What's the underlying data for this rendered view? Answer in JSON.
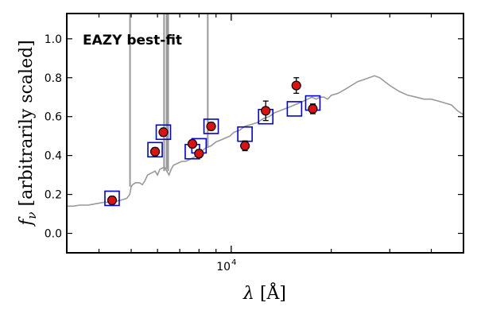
{
  "chart_data": {
    "type": "scatter",
    "title": "",
    "annotation": "EAZY best-fit",
    "annotation_color": "#ff0000",
    "xlabel_symbol": "λ",
    "xlabel_unit": "[Å]",
    "ylabel_symbol": "f",
    "ylabel_subscript": "ν",
    "ylabel_text": "[arbitrarily scaled]",
    "xscale": "log",
    "xlim": [
      3200,
      50000
    ],
    "ylim": [
      -0.1,
      1.13
    ],
    "y_ticks": [
      0.0,
      0.2,
      0.4,
      0.6,
      0.8,
      1.0
    ],
    "y_tick_labels": [
      "0.0",
      "0.2",
      "0.4",
      "0.6",
      "0.8",
      "1.0"
    ],
    "x_major_tick": 10000,
    "x_major_tick_label_base": "10",
    "x_major_tick_label_exp": "4",
    "x_minor_ticks": [
      4000,
      5000,
      6000,
      7000,
      8000,
      9000,
      20000,
      30000,
      40000
    ],
    "grid": false,
    "observed": {
      "name": "",
      "color": "#dd1111",
      "points": [
        {
          "x": 4380,
          "y": 0.17,
          "err": 0.02
        },
        {
          "x": 5900,
          "y": 0.42,
          "err": 0.02
        },
        {
          "x": 6250,
          "y": 0.52,
          "err": 0.02
        },
        {
          "x": 7640,
          "y": 0.46,
          "err": 0.02
        },
        {
          "x": 8000,
          "y": 0.41,
          "err": 0.02
        },
        {
          "x": 8700,
          "y": 0.55,
          "err": 0.02
        },
        {
          "x": 11000,
          "y": 0.45,
          "err": 0.025
        },
        {
          "x": 12700,
          "y": 0.63,
          "err": 0.05
        },
        {
          "x": 15700,
          "y": 0.76,
          "err": 0.04
        },
        {
          "x": 17600,
          "y": 0.64,
          "err": 0.025
        }
      ]
    },
    "model_photometry": {
      "name": "",
      "color": "#0000dd",
      "points": [
        {
          "x": 4380,
          "y": 0.18
        },
        {
          "x": 5900,
          "y": 0.43
        },
        {
          "x": 6250,
          "y": 0.52
        },
        {
          "x": 7640,
          "y": 0.42
        },
        {
          "x": 8000,
          "y": 0.45
        },
        {
          "x": 8700,
          "y": 0.55
        },
        {
          "x": 11000,
          "y": 0.51
        },
        {
          "x": 12700,
          "y": 0.6
        },
        {
          "x": 15500,
          "y": 0.64
        },
        {
          "x": 17600,
          "y": 0.67
        }
      ]
    },
    "sed": {
      "name": "",
      "color": "#999999",
      "points": [
        [
          3200,
          0.14
        ],
        [
          3350,
          0.14
        ],
        [
          3500,
          0.145
        ],
        [
          3700,
          0.145
        ],
        [
          3850,
          0.15
        ],
        [
          4000,
          0.155
        ],
        [
          4150,
          0.16
        ],
        [
          4300,
          0.16
        ],
        [
          4500,
          0.165
        ],
        [
          4650,
          0.17
        ],
        [
          4850,
          0.18
        ],
        [
          4950,
          0.2
        ],
        [
          5000,
          0.24
        ],
        [
          5050,
          0.25
        ],
        [
          5150,
          0.26
        ],
        [
          5300,
          0.26
        ],
        [
          5400,
          0.25
        ],
        [
          5500,
          0.27
        ],
        [
          5600,
          0.3
        ],
        [
          5750,
          0.31
        ],
        [
          5900,
          0.32
        ],
        [
          6000,
          0.3
        ],
        [
          6100,
          0.33
        ],
        [
          6300,
          0.34
        ],
        [
          6500,
          0.3
        ],
        [
          6600,
          0.33
        ],
        [
          6700,
          0.35
        ],
        [
          6900,
          0.36
        ],
        [
          7100,
          0.37
        ],
        [
          7300,
          0.37
        ],
        [
          7500,
          0.38
        ],
        [
          7700,
          0.39
        ],
        [
          7900,
          0.4
        ],
        [
          8100,
          0.42
        ],
        [
          8400,
          0.44
        ],
        [
          8700,
          0.45
        ],
        [
          9000,
          0.47
        ],
        [
          9300,
          0.48
        ],
        [
          9600,
          0.49
        ],
        [
          9900,
          0.5
        ],
        [
          10200,
          0.52
        ],
        [
          10600,
          0.53
        ],
        [
          11000,
          0.55
        ],
        [
          11500,
          0.56
        ],
        [
          12000,
          0.57
        ],
        [
          12500,
          0.59
        ],
        [
          13000,
          0.6
        ],
        [
          13500,
          0.62
        ],
        [
          14000,
          0.63
        ],
        [
          14500,
          0.64
        ],
        [
          15000,
          0.65
        ],
        [
          15500,
          0.66
        ],
        [
          16000,
          0.67
        ],
        [
          16500,
          0.68
        ],
        [
          17000,
          0.69
        ],
        [
          17500,
          0.7
        ],
        [
          18000,
          0.69
        ],
        [
          18500,
          0.7
        ],
        [
          19000,
          0.7
        ],
        [
          19500,
          0.69
        ],
        [
          20000,
          0.71
        ],
        [
          21000,
          0.72
        ],
        [
          22000,
          0.74
        ],
        [
          23000,
          0.76
        ],
        [
          24000,
          0.78
        ],
        [
          25000,
          0.79
        ],
        [
          26000,
          0.8
        ],
        [
          27000,
          0.81
        ],
        [
          28000,
          0.8
        ],
        [
          29000,
          0.78
        ],
        [
          30000,
          0.76
        ],
        [
          32000,
          0.73
        ],
        [
          34000,
          0.71
        ],
        [
          36000,
          0.7
        ],
        [
          38000,
          0.69
        ],
        [
          40000,
          0.69
        ],
        [
          42000,
          0.68
        ],
        [
          44000,
          0.67
        ],
        [
          46000,
          0.66
        ],
        [
          48000,
          0.63
        ],
        [
          50000,
          0.61
        ]
      ],
      "emission_lines": [
        {
          "x": 4960,
          "top": 1.13,
          "base": 0.24
        },
        {
          "x": 6280,
          "top": 1.13,
          "base": 0.32
        },
        {
          "x": 6390,
          "top": 1.13,
          "base": 0.33
        },
        {
          "x": 6460,
          "top": 1.13,
          "base": 0.32
        },
        {
          "x": 8500,
          "top": 1.13,
          "base": 0.44
        }
      ]
    }
  }
}
